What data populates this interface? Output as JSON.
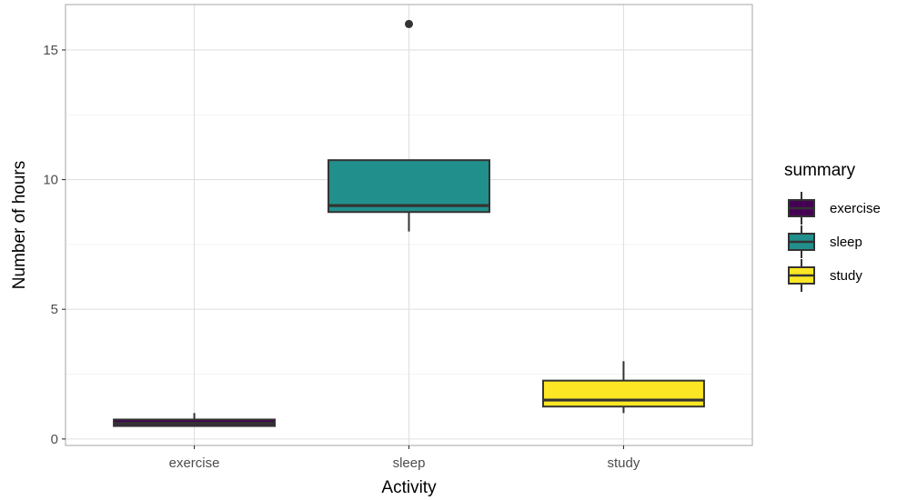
{
  "chart_data": {
    "type": "boxplot",
    "xlabel": "Activity",
    "ylabel": "Number of hours",
    "ylim": [
      -0.25,
      16.75
    ],
    "yticks": [
      0,
      5,
      10,
      15
    ],
    "grid": true,
    "categories": [
      "exercise",
      "sleep",
      "study"
    ],
    "boxes": [
      {
        "category": "exercise",
        "min": 0.5,
        "q1": 0.5,
        "median": 0.6,
        "q3": 0.75,
        "max": 1.0,
        "outliers": [],
        "color": "#440154"
      },
      {
        "category": "sleep",
        "min": 8.0,
        "q1": 8.75,
        "median": 9.0,
        "q3": 10.75,
        "max": 10.75,
        "outliers": [
          16.0
        ],
        "color": "#21908C"
      },
      {
        "category": "study",
        "min": 1.0,
        "q1": 1.25,
        "median": 1.5,
        "q3": 2.25,
        "max": 3.0,
        "outliers": [],
        "color": "#FDE725"
      }
    ],
    "legend": {
      "title": "summary",
      "position": "right",
      "items": [
        {
          "label": "exercise",
          "color": "#440154"
        },
        {
          "label": "sleep",
          "color": "#21908C"
        },
        {
          "label": "study",
          "color": "#FDE725"
        }
      ]
    }
  }
}
